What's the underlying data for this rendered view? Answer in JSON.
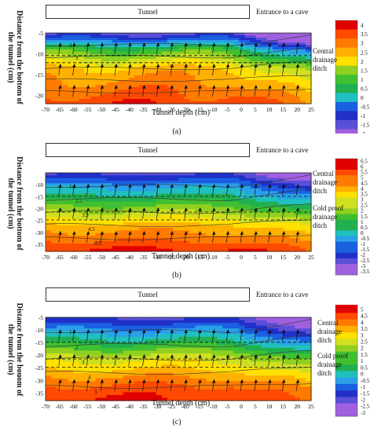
{
  "chart_data": [
    {
      "type": "heatmap",
      "panel_label": "(a)",
      "tunnel_label": "Tunnel",
      "entrance_label": "Entrance to a cave",
      "ylabel": "Distance from the bottom of the tunnel (cm)",
      "xlabel": "Tunnel depth (cm)",
      "annotations": [
        "Central drainage ditch"
      ],
      "xlim": [
        -70,
        25
      ],
      "ylim": [
        -22,
        -5
      ],
      "xticks": [
        -70,
        -65,
        -60,
        -55,
        -50,
        -45,
        -40,
        -35,
        -30,
        -25,
        -20,
        -15,
        -10,
        -5,
        0,
        5,
        10,
        15,
        20,
        25
      ],
      "yticks": [
        -5,
        -10,
        -15,
        -20
      ],
      "colorbar": [
        4,
        3.5,
        3,
        2.5,
        2,
        1.5,
        1,
        0.5,
        0,
        -0.5,
        -1,
        -1.5,
        -2
      ],
      "contour_labels": [
        "2",
        "3"
      ],
      "base_temp": [
        -1.5,
        1.0,
        2.5,
        3.0,
        3.5
      ]
    },
    {
      "type": "heatmap",
      "panel_label": "(b)",
      "tunnel_label": "Tunnel",
      "entrance_label": "Entrance to a cave",
      "ylabel": "Distance from the bottom of the tunnel (cm)",
      "xlabel": "Tunnel depth (cm)",
      "annotations": [
        "Central drainage ditch",
        "Cold proof drainage ditch"
      ],
      "xlim": [
        -70,
        25
      ],
      "ylim": [
        -38,
        -5
      ],
      "xticks": [
        -70,
        -65,
        -60,
        -55,
        -50,
        -45,
        -40,
        -35,
        -30,
        -25,
        -20,
        -15,
        -10,
        -5,
        0,
        5,
        10,
        15,
        20,
        25
      ],
      "yticks": [
        -10,
        -15,
        -20,
        -25,
        -30,
        -35
      ],
      "colorbar": [
        6.5,
        6,
        5.5,
        5,
        4.5,
        4,
        3.5,
        3,
        2.5,
        2,
        1.5,
        1,
        0.5,
        0,
        -0.5,
        -1,
        -1.5,
        -2,
        -2.5,
        -3,
        -3.5
      ],
      "contour_labels": [
        "1.5",
        "2.5",
        "3.5",
        "4.5",
        "0.5"
      ],
      "base_temp": [
        -2.5,
        -0.5,
        1.0,
        2.5,
        4.0,
        5.0,
        6.0
      ]
    },
    {
      "type": "heatmap",
      "panel_label": "(c)",
      "tunnel_label": "Tunnel",
      "entrance_label": "Entrance to a cave",
      "ylabel": "Distance from the bouom of the tunnel (cm)",
      "xlabel": "Tunnel depth (cm)",
      "annotations": [
        "Central drainage ditch",
        "Cold proof drainage ditch"
      ],
      "xlim": [
        -70,
        25
      ],
      "ylim": [
        -38,
        -5
      ],
      "xticks": [
        -70,
        -65,
        -60,
        -55,
        -50,
        -45,
        -40,
        -35,
        -30,
        -25,
        -20,
        -15,
        -10,
        -5,
        0,
        5,
        10,
        15,
        20,
        25
      ],
      "yticks": [
        -5,
        -10,
        -15,
        -20,
        -25,
        -30,
        -35
      ],
      "colorbar": [
        5.5,
        5,
        4.5,
        4,
        3.5,
        3,
        2.5,
        2,
        1.5,
        1,
        0.5,
        0,
        -0.5,
        -1,
        -1.5,
        -2,
        -2.5,
        -3
      ],
      "contour_labels": [
        "1",
        "2",
        "3",
        "4",
        "3"
      ],
      "base_temp": [
        -2.0,
        -0.5,
        1.0,
        2.5,
        3.5,
        4.5,
        5.0
      ]
    }
  ]
}
